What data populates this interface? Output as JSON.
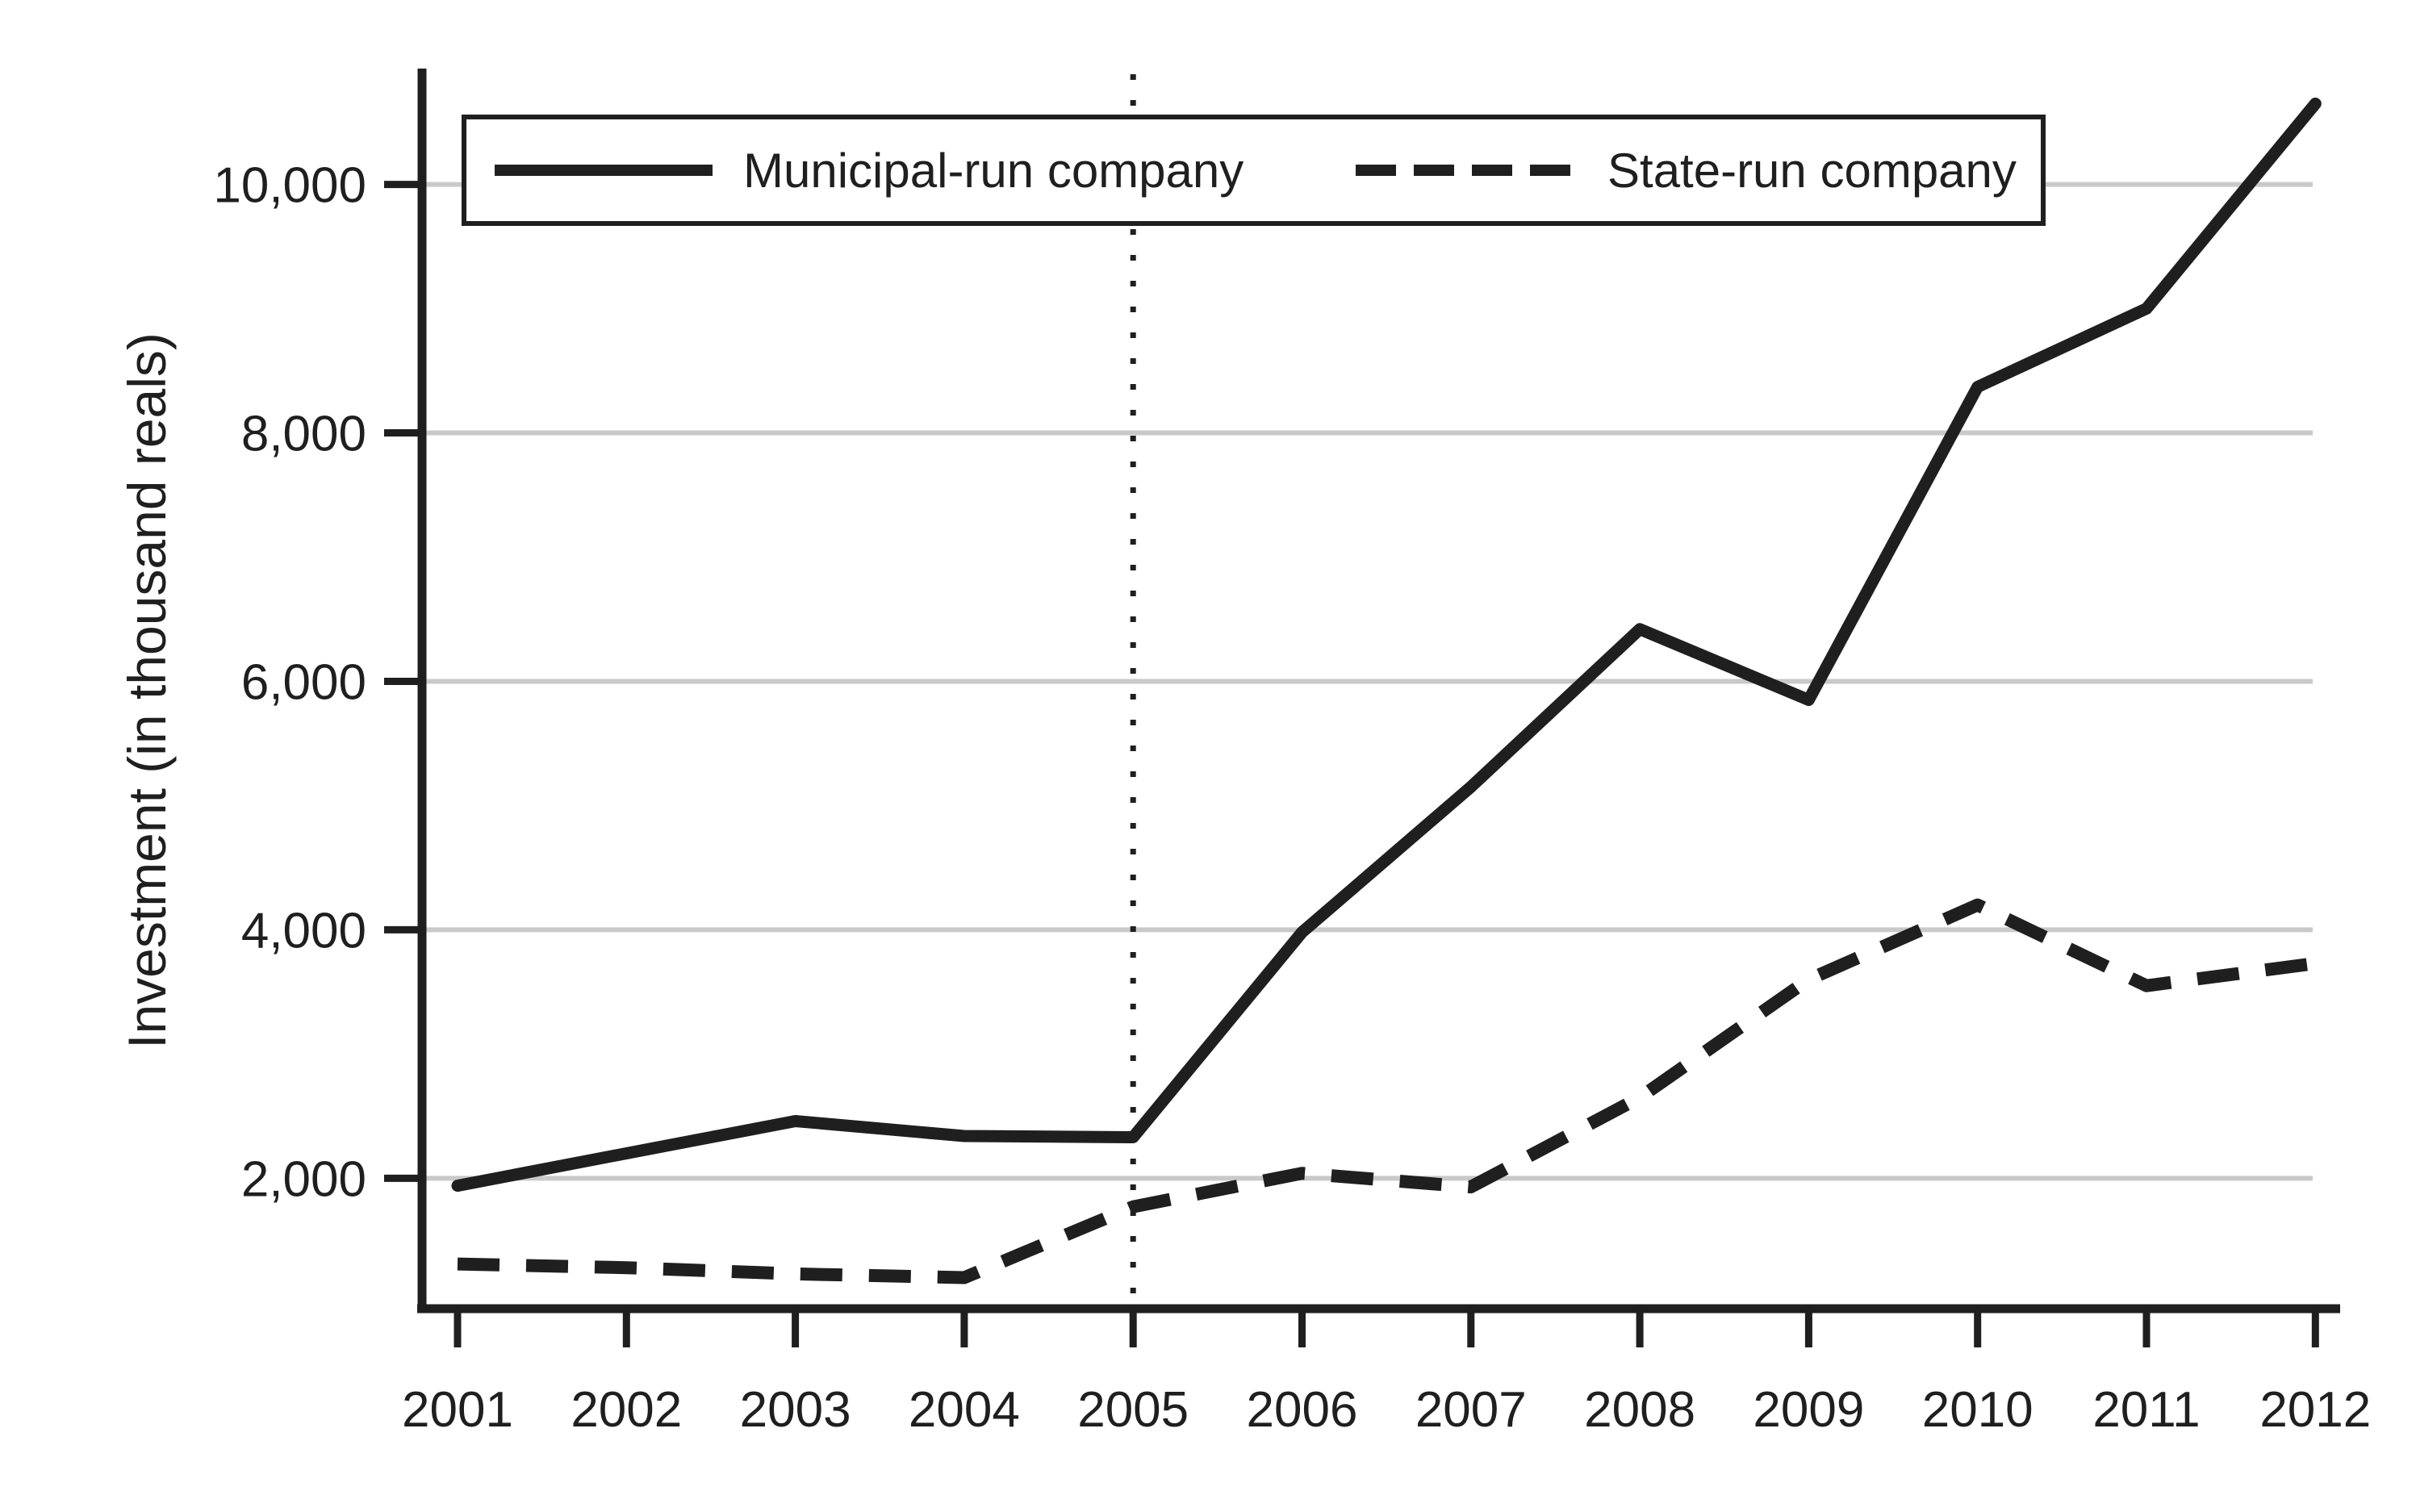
{
  "chart_data": {
    "type": "line",
    "title": "",
    "xlabel": "",
    "ylabel": "Investment (in thousand reals)",
    "x": [
      2001,
      2002,
      2003,
      2004,
      2005,
      2006,
      2007,
      2008,
      2009,
      2010,
      2011,
      2012
    ],
    "x_labels": [
      "2001",
      "2002",
      "2003",
      "2004",
      "2005",
      "2006",
      "2007",
      "2008",
      "2009",
      "2010",
      "2011",
      "2012"
    ],
    "series": [
      {
        "name": "Municipal-run company",
        "style": "solid",
        "values": [
          1940,
          2200,
          2460,
          2340,
          2330,
          3980,
          5150,
          6420,
          5850,
          8370,
          9000,
          10650
        ]
      },
      {
        "name": "State-run company",
        "style": "dashed",
        "values": [
          1310,
          1280,
          1230,
          1200,
          1770,
          2040,
          1930,
          2650,
          3600,
          4200,
          3550,
          3730
        ]
      }
    ],
    "y_ticks": [
      {
        "value": 2000,
        "label": "2,000"
      },
      {
        "value": 4000,
        "label": "4,000"
      },
      {
        "value": 6000,
        "label": "6,000"
      },
      {
        "value": 8000,
        "label": "8,000"
      },
      {
        "value": 10000,
        "label": "10,000"
      }
    ],
    "ylim": [
      950,
      10900
    ],
    "xlim": [
      2001,
      2012
    ],
    "grid": "horizontal-gray-lines",
    "reference_line": {
      "x": 2005,
      "style": "dotted-vertical"
    },
    "legend_position": "top-inside-box",
    "colors": {
      "line": "#1f1f1f",
      "grid": "#c9c9c9",
      "background": "#ffffff"
    }
  }
}
